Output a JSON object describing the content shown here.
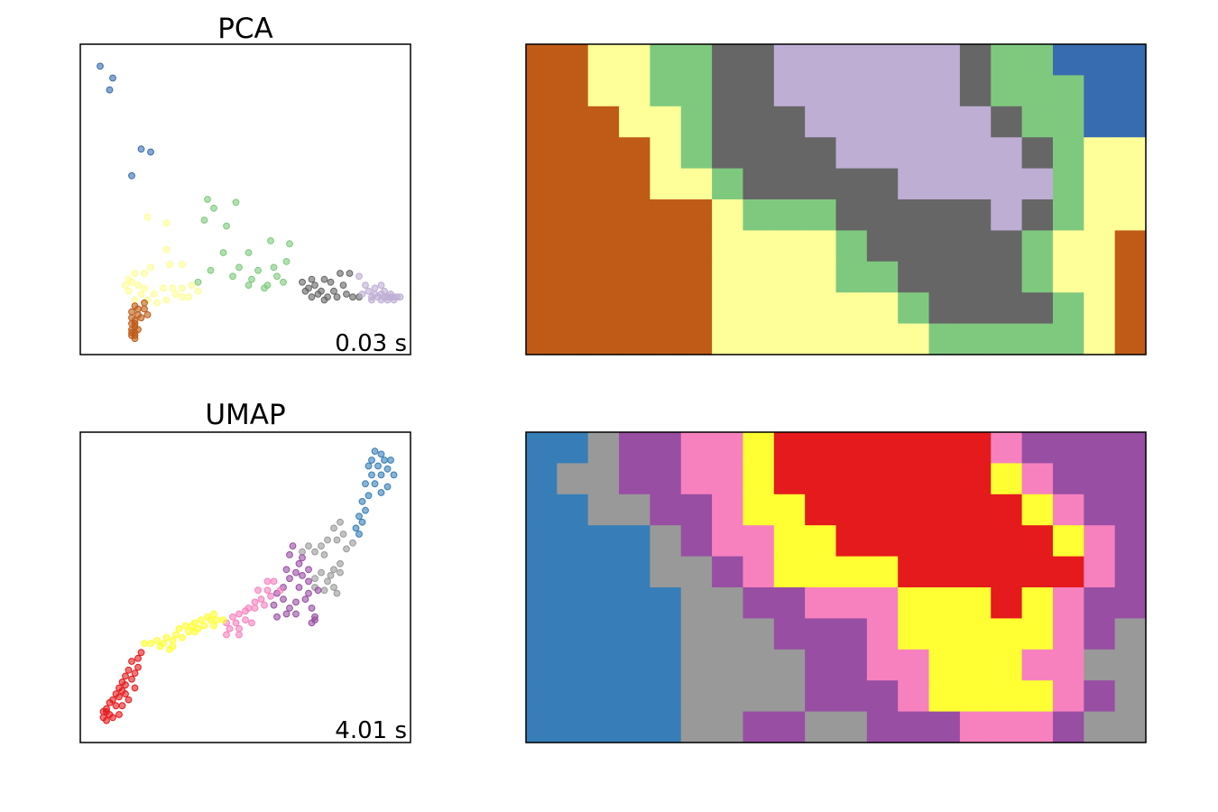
{
  "chart_data": [
    {
      "type": "scatter",
      "title": "PCA",
      "annotation": "0.03 s",
      "axes": "hidden ticks",
      "grid": false,
      "colors": {
        "0": "#386cb0",
        "1": "#7fc97f",
        "2": "#fdfd96",
        "3": "#bf5b17",
        "4": "#666666",
        "5": "#beaed4"
      },
      "points": [
        [
          0.04,
          0.95,
          0
        ],
        [
          0.08,
          0.91,
          0
        ],
        [
          0.07,
          0.87,
          0
        ],
        [
          0.17,
          0.67,
          0
        ],
        [
          0.2,
          0.66,
          0
        ],
        [
          0.14,
          0.58,
          0
        ],
        [
          0.38,
          0.5,
          1
        ],
        [
          0.4,
          0.47,
          1
        ],
        [
          0.47,
          0.49,
          1
        ],
        [
          0.37,
          0.43,
          1
        ],
        [
          0.44,
          0.41,
          1
        ],
        [
          0.58,
          0.36,
          1
        ],
        [
          0.64,
          0.35,
          1
        ],
        [
          0.43,
          0.32,
          1
        ],
        [
          0.51,
          0.32,
          1
        ],
        [
          0.63,
          0.29,
          1
        ],
        [
          0.48,
          0.27,
          1
        ],
        [
          0.54,
          0.26,
          1
        ],
        [
          0.59,
          0.27,
          1
        ],
        [
          0.39,
          0.26,
          1
        ],
        [
          0.46,
          0.24,
          1
        ],
        [
          0.52,
          0.23,
          1
        ],
        [
          0.6,
          0.24,
          1
        ],
        [
          0.35,
          0.22,
          1
        ],
        [
          0.51,
          0.21,
          1
        ],
        [
          0.62,
          0.22,
          1
        ],
        [
          0.56,
          0.2,
          1
        ],
        [
          0.57,
          0.21,
          1
        ],
        [
          0.19,
          0.44,
          2
        ],
        [
          0.25,
          0.42,
          2
        ],
        [
          0.25,
          0.33,
          2
        ],
        [
          0.26,
          0.28,
          2
        ],
        [
          0.3,
          0.28,
          2
        ],
        [
          0.2,
          0.27,
          2
        ],
        [
          0.18,
          0.25,
          2
        ],
        [
          0.15,
          0.25,
          2
        ],
        [
          0.13,
          0.23,
          2
        ],
        [
          0.14,
          0.22,
          2
        ],
        [
          0.16,
          0.21,
          2
        ],
        [
          0.18,
          0.2,
          2
        ],
        [
          0.24,
          0.2,
          2
        ],
        [
          0.27,
          0.2,
          2
        ],
        [
          0.3,
          0.2,
          2
        ],
        [
          0.33,
          0.21,
          2
        ],
        [
          0.35,
          0.19,
          2
        ],
        [
          0.13,
          0.19,
          2
        ],
        [
          0.17,
          0.18,
          2
        ],
        [
          0.21,
          0.18,
          2
        ],
        [
          0.28,
          0.18,
          2
        ],
        [
          0.15,
          0.16,
          2
        ],
        [
          0.19,
          0.16,
          2
        ],
        [
          0.25,
          0.16,
          2
        ],
        [
          0.32,
          0.17,
          2
        ],
        [
          0.22,
          0.15,
          2
        ],
        [
          0.12,
          0.21,
          2
        ],
        [
          0.3,
          0.17,
          2
        ],
        [
          0.15,
          0.14,
          3
        ],
        [
          0.18,
          0.13,
          3
        ],
        [
          0.14,
          0.12,
          3
        ],
        [
          0.16,
          0.11,
          3
        ],
        [
          0.19,
          0.11,
          3
        ],
        [
          0.14,
          0.1,
          3
        ],
        [
          0.17,
          0.1,
          3
        ],
        [
          0.15,
          0.09,
          3
        ],
        [
          0.14,
          0.08,
          3
        ],
        [
          0.15,
          0.07,
          3
        ],
        [
          0.14,
          0.06,
          3
        ],
        [
          0.15,
          0.05,
          3
        ],
        [
          0.14,
          0.04,
          3
        ],
        [
          0.15,
          0.04,
          3
        ],
        [
          0.14,
          0.05,
          3
        ],
        [
          0.16,
          0.06,
          3
        ],
        [
          0.15,
          0.08,
          3
        ],
        [
          0.16,
          0.13,
          3
        ],
        [
          0.18,
          0.15,
          3
        ],
        [
          0.15,
          0.03,
          3
        ],
        [
          0.71,
          0.23,
          4
        ],
        [
          0.75,
          0.23,
          4
        ],
        [
          0.8,
          0.25,
          4
        ],
        [
          0.83,
          0.25,
          4
        ],
        [
          0.68,
          0.22,
          4
        ],
        [
          0.72,
          0.21,
          4
        ],
        [
          0.69,
          0.19,
          4
        ],
        [
          0.73,
          0.18,
          4
        ],
        [
          0.76,
          0.17,
          4
        ],
        [
          0.79,
          0.17,
          4
        ],
        [
          0.82,
          0.18,
          4
        ],
        [
          0.84,
          0.17,
          4
        ],
        [
          0.81,
          0.21,
          4
        ],
        [
          0.74,
          0.19,
          4
        ],
        [
          0.71,
          0.17,
          4
        ],
        [
          0.78,
          0.19,
          4
        ],
        [
          0.86,
          0.17,
          4
        ],
        [
          0.77,
          0.22,
          4
        ],
        [
          0.7,
          0.2,
          4
        ],
        [
          0.75,
          0.16,
          4
        ],
        [
          0.86,
          0.24,
          5
        ],
        [
          0.88,
          0.21,
          5
        ],
        [
          0.89,
          0.19,
          5
        ],
        [
          0.9,
          0.17,
          5
        ],
        [
          0.91,
          0.18,
          5
        ],
        [
          0.92,
          0.17,
          5
        ],
        [
          0.93,
          0.18,
          5
        ],
        [
          0.94,
          0.17,
          5
        ],
        [
          0.95,
          0.17,
          5
        ],
        [
          0.96,
          0.17,
          5
        ],
        [
          0.97,
          0.17,
          5
        ],
        [
          0.98,
          0.17,
          5
        ],
        [
          0.93,
          0.16,
          5
        ],
        [
          0.95,
          0.16,
          5
        ],
        [
          0.97,
          0.16,
          5
        ],
        [
          0.99,
          0.17,
          5
        ],
        [
          0.91,
          0.2,
          5
        ],
        [
          0.93,
          0.21,
          5
        ],
        [
          0.94,
          0.19,
          5
        ],
        [
          0.96,
          0.18,
          5
        ],
        [
          0.87,
          0.18,
          5
        ],
        [
          0.9,
          0.16,
          5
        ]
      ]
    },
    {
      "type": "heatmap",
      "title": "",
      "axes": "hidden ticks",
      "grid": false,
      "rows": 10,
      "cols": 20,
      "colors": {
        "O": "#bf5b17",
        "Y": "#ffff99",
        "G": "#7fc97f",
        "D": "#666666",
        "L": "#beaed4",
        "B": "#386cb0"
      },
      "cells": [
        "OOYYGGDDLLLLLLDGGBBB",
        "OOYYGGDDLLLLLLDGGGBB",
        "OOOYYGDDDLLLLLLDGGBB",
        "OOOOYGDDDDLLLLLLDGYY",
        "OOOOYYGDDDDDLLLLLGYY",
        "OOOOOOYGGGDDDDDLDGYY",
        "OOOOOOYYYYGDDDDDGYYO",
        "OOOOOOYYYYGGDDDDGYYO",
        "OOOOOOYYYYYYGDDDDGYO",
        "OOOOOOYYYYYYYGGGGGYO"
      ]
    },
    {
      "type": "scatter",
      "title": "UMAP",
      "annotation": "4.01 s",
      "axes": "hidden ticks",
      "grid": false,
      "colors": {
        "0": "#377eb8",
        "1": "#999999",
        "2": "#984ea3",
        "3": "#f781bf",
        "4": "#ffff33",
        "5": "#e41a1c"
      },
      "points": [
        [
          0.91,
          0.96,
          0
        ],
        [
          0.93,
          0.95,
          0
        ],
        [
          0.9,
          0.93,
          0
        ],
        [
          0.94,
          0.93,
          0
        ],
        [
          0.96,
          0.93,
          0
        ],
        [
          0.89,
          0.91,
          0
        ],
        [
          0.92,
          0.91,
          0
        ],
        [
          0.95,
          0.9,
          0
        ],
        [
          0.97,
          0.88,
          0
        ],
        [
          0.9,
          0.88,
          0
        ],
        [
          0.93,
          0.88,
          0
        ],
        [
          0.88,
          0.85,
          0
        ],
        [
          0.91,
          0.85,
          0
        ],
        [
          0.95,
          0.84,
          0
        ],
        [
          0.93,
          0.82,
          0
        ],
        [
          0.89,
          0.81,
          0
        ],
        [
          0.87,
          0.79,
          0
        ],
        [
          0.88,
          0.76,
          0
        ],
        [
          0.86,
          0.74,
          0
        ],
        [
          0.87,
          0.72,
          0
        ],
        [
          0.85,
          0.7,
          0
        ],
        [
          0.86,
          0.68,
          0
        ],
        [
          0.8,
          0.72,
          1
        ],
        [
          0.78,
          0.7,
          1
        ],
        [
          0.81,
          0.68,
          1
        ],
        [
          0.79,
          0.66,
          1
        ],
        [
          0.76,
          0.66,
          1
        ],
        [
          0.74,
          0.64,
          1
        ],
        [
          0.72,
          0.62,
          1
        ],
        [
          0.75,
          0.61,
          1
        ],
        [
          0.7,
          0.64,
          1
        ],
        [
          0.68,
          0.62,
          1
        ],
        [
          0.84,
          0.65,
          1
        ],
        [
          0.82,
          0.63,
          1
        ],
        [
          0.8,
          0.58,
          1
        ],
        [
          0.78,
          0.56,
          1
        ],
        [
          0.8,
          0.55,
          1
        ],
        [
          0.77,
          0.54,
          1
        ],
        [
          0.74,
          0.55,
          1
        ],
        [
          0.76,
          0.52,
          1
        ],
        [
          0.72,
          0.53,
          1
        ],
        [
          0.78,
          0.5,
          1
        ],
        [
          0.75,
          0.49,
          1
        ],
        [
          0.79,
          0.48,
          1
        ],
        [
          0.72,
          0.5,
          1
        ],
        [
          0.65,
          0.64,
          2
        ],
        [
          0.64,
          0.61,
          2
        ],
        [
          0.68,
          0.6,
          2
        ],
        [
          0.67,
          0.58,
          2
        ],
        [
          0.63,
          0.56,
          2
        ],
        [
          0.7,
          0.56,
          2
        ],
        [
          0.66,
          0.55,
          2
        ],
        [
          0.68,
          0.54,
          2
        ],
        [
          0.64,
          0.53,
          2
        ],
        [
          0.7,
          0.52,
          2
        ],
        [
          0.67,
          0.5,
          2
        ],
        [
          0.73,
          0.49,
          2
        ],
        [
          0.7,
          0.48,
          2
        ],
        [
          0.62,
          0.5,
          2
        ],
        [
          0.6,
          0.48,
          2
        ],
        [
          0.62,
          0.46,
          2
        ],
        [
          0.66,
          0.45,
          2
        ],
        [
          0.69,
          0.46,
          2
        ],
        [
          0.71,
          0.43,
          2
        ],
        [
          0.64,
          0.43,
          2
        ],
        [
          0.59,
          0.44,
          2
        ],
        [
          0.63,
          0.41,
          2
        ],
        [
          0.66,
          0.41,
          2
        ],
        [
          0.6,
          0.4,
          2
        ],
        [
          0.72,
          0.4,
          2
        ],
        [
          0.71,
          0.38,
          2
        ],
        [
          0.72,
          0.39,
          2
        ],
        [
          0.59,
          0.52,
          3
        ],
        [
          0.57,
          0.52,
          3
        ],
        [
          0.61,
          0.49,
          3
        ],
        [
          0.57,
          0.49,
          3
        ],
        [
          0.54,
          0.49,
          3
        ],
        [
          0.58,
          0.47,
          3
        ],
        [
          0.55,
          0.46,
          3
        ],
        [
          0.53,
          0.45,
          3
        ],
        [
          0.56,
          0.44,
          3
        ],
        [
          0.53,
          0.43,
          3
        ],
        [
          0.51,
          0.43,
          3
        ],
        [
          0.5,
          0.42,
          3
        ],
        [
          0.48,
          0.41,
          3
        ],
        [
          0.46,
          0.4,
          3
        ],
        [
          0.5,
          0.39,
          3
        ],
        [
          0.47,
          0.38,
          3
        ],
        [
          0.44,
          0.38,
          3
        ],
        [
          0.48,
          0.36,
          3
        ],
        [
          0.45,
          0.36,
          3
        ],
        [
          0.48,
          0.34,
          3
        ],
        [
          0.44,
          0.34,
          3
        ],
        [
          0.52,
          0.38,
          3
        ],
        [
          0.4,
          0.41,
          4
        ],
        [
          0.38,
          0.4,
          4
        ],
        [
          0.41,
          0.39,
          4
        ],
        [
          0.39,
          0.39,
          4
        ],
        [
          0.36,
          0.39,
          4
        ],
        [
          0.34,
          0.38,
          4
        ],
        [
          0.33,
          0.37,
          4
        ],
        [
          0.31,
          0.37,
          4
        ],
        [
          0.35,
          0.36,
          4
        ],
        [
          0.32,
          0.35,
          4
        ],
        [
          0.29,
          0.36,
          4
        ],
        [
          0.28,
          0.34,
          4
        ],
        [
          0.3,
          0.33,
          4
        ],
        [
          0.27,
          0.32,
          4
        ],
        [
          0.25,
          0.33,
          4
        ],
        [
          0.24,
          0.31,
          4
        ],
        [
          0.22,
          0.32,
          4
        ],
        [
          0.23,
          0.3,
          4
        ],
        [
          0.2,
          0.31,
          4
        ],
        [
          0.18,
          0.31,
          4
        ],
        [
          0.26,
          0.29,
          4
        ],
        [
          0.43,
          0.39,
          4
        ],
        [
          0.4,
          0.37,
          4
        ],
        [
          0.37,
          0.37,
          4
        ],
        [
          0.34,
          0.35,
          4
        ],
        [
          0.27,
          0.3,
          4
        ],
        [
          0.17,
          0.28,
          5
        ],
        [
          0.16,
          0.26,
          5
        ],
        [
          0.14,
          0.25,
          5
        ],
        [
          0.16,
          0.23,
          5
        ],
        [
          0.13,
          0.22,
          5
        ],
        [
          0.15,
          0.21,
          5
        ],
        [
          0.12,
          0.2,
          5
        ],
        [
          0.14,
          0.19,
          5
        ],
        [
          0.11,
          0.18,
          5
        ],
        [
          0.12,
          0.17,
          5
        ],
        [
          0.1,
          0.16,
          5
        ],
        [
          0.11,
          0.15,
          5
        ],
        [
          0.09,
          0.14,
          5
        ],
        [
          0.1,
          0.13,
          5
        ],
        [
          0.08,
          0.12,
          5
        ],
        [
          0.07,
          0.11,
          5
        ],
        [
          0.09,
          0.1,
          5
        ],
        [
          0.06,
          0.09,
          5
        ],
        [
          0.05,
          0.08,
          5
        ],
        [
          0.07,
          0.07,
          5
        ],
        [
          0.05,
          0.06,
          5
        ],
        [
          0.06,
          0.05,
          5
        ],
        [
          0.08,
          0.06,
          5
        ],
        [
          0.1,
          0.07,
          5
        ],
        [
          0.06,
          0.08,
          5
        ],
        [
          0.11,
          0.1,
          5
        ],
        [
          0.13,
          0.12,
          5
        ],
        [
          0.15,
          0.16,
          5
        ],
        [
          0.12,
          0.14,
          5
        ]
      ]
    },
    {
      "type": "heatmap",
      "title": "",
      "axes": "hidden ticks",
      "grid": false,
      "rows": 10,
      "cols": 20,
      "colors": {
        "B": "#377eb8",
        "G": "#999999",
        "P": "#984ea3",
        "K": "#f781bf",
        "Y": "#ffff33",
        "R": "#e41a1c"
      },
      "cells": [
        "BBGPPKKYRRRRRRRKPPPP",
        "BGGPPKKYRRRRRRRYKPPP",
        "BBGGPPKYYRRRRRRRYKPP",
        "BBBBGPKKYYRRRRRRRYKP",
        "BBBBGGPKYYYYRRRRRRKP",
        "BBBBBGGPPKKKYYYRYKPP",
        "BBBBBGGGPPPKYYYYYKPG",
        "BBBBBGGGGPPKKYYYKKGG",
        "BBBBBGGGGPPPKYYYYKPG",
        "BBBBBGGPPGGPPPKKKPGG"
      ]
    }
  ]
}
